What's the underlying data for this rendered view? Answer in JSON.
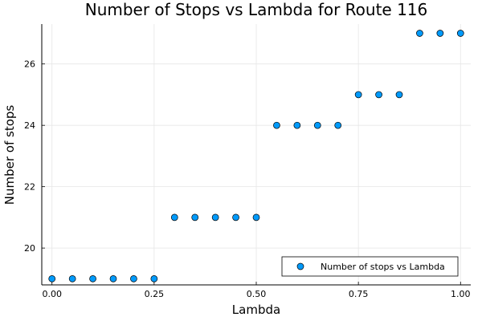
{
  "chart_data": {
    "type": "scatter",
    "title": "Number of Stops vs Lambda for Route 116",
    "xlabel": "Lambda",
    "ylabel": "Number of stops",
    "xlim": [
      -0.025,
      1.025
    ],
    "ylim": [
      18.8,
      27.3
    ],
    "xticks": [
      0.0,
      0.25,
      0.5,
      0.75,
      1.0
    ],
    "xtick_labels": [
      "0.00",
      "0.25",
      "0.50",
      "0.75",
      "1.00"
    ],
    "yticks": [
      20,
      22,
      24,
      26
    ],
    "ytick_labels": [
      "20",
      "22",
      "24",
      "26"
    ],
    "grid": true,
    "legend_position": "bottom-right",
    "series": [
      {
        "name": "Number of stops vs Lambda",
        "color": "#009AFA",
        "x": [
          0.0,
          0.05,
          0.1,
          0.15,
          0.2,
          0.25,
          0.3,
          0.35,
          0.4,
          0.45,
          0.5,
          0.55,
          0.6,
          0.65,
          0.7,
          0.75,
          0.8,
          0.85,
          0.9,
          0.95,
          1.0
        ],
        "y": [
          19,
          19,
          19,
          19,
          19,
          19,
          21,
          21,
          21,
          21,
          21,
          24,
          24,
          24,
          24,
          25,
          25,
          25,
          27,
          27,
          27
        ]
      }
    ]
  }
}
